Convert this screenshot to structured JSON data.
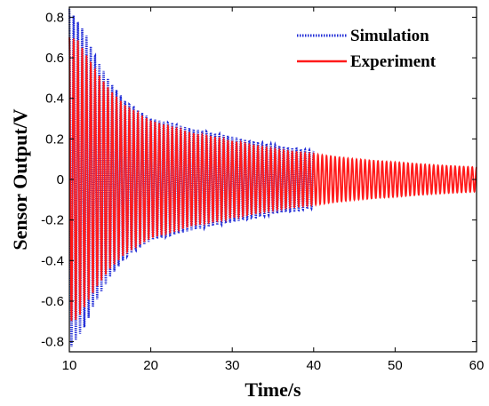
{
  "chart_data": {
    "type": "line",
    "title": "",
    "xlabel": "Time/s",
    "ylabel": "Sensor Output/V",
    "xlim": [
      10,
      60
    ],
    "ylim": [
      -0.85,
      0.85
    ],
    "xticks": [
      10,
      20,
      30,
      40,
      50,
      60
    ],
    "xtick_labels": [
      "10",
      "20",
      "30",
      "40",
      "50",
      "60"
    ],
    "yticks": [
      -0.8,
      -0.6,
      -0.4,
      -0.2,
      0,
      0.2,
      0.4,
      0.6,
      0.8
    ],
    "ytick_labels": [
      "-0.8",
      "-0.6",
      "-0.4",
      "-0.2",
      "0",
      "0.2",
      "0.4",
      "0.6",
      "0.8"
    ],
    "grid": false,
    "legend_position": "top-right",
    "series": [
      {
        "name": "Simulation",
        "color": "#1f2bd6",
        "line_style": "dotted",
        "time_range": [
          10,
          40
        ],
        "frequency_hz": 1.9,
        "envelope": {
          "t": [
            10,
            11,
            12,
            13,
            15,
            17,
            20,
            25,
            30,
            35,
            40
          ],
          "amplitude": [
            0.84,
            0.78,
            0.72,
            0.62,
            0.48,
            0.38,
            0.3,
            0.25,
            0.21,
            0.17,
            0.14
          ]
        }
      },
      {
        "name": "Experiment",
        "color": "#ff1a1a",
        "line_style": "solid",
        "time_range": [
          10,
          60
        ],
        "frequency_hz": 1.9,
        "envelope": {
          "t": [
            10,
            11,
            12,
            13,
            15,
            17,
            20,
            25,
            30,
            35,
            40,
            45,
            50,
            55,
            60
          ],
          "amplitude": [
            0.7,
            0.69,
            0.62,
            0.55,
            0.44,
            0.36,
            0.29,
            0.23,
            0.19,
            0.15,
            0.125,
            0.1,
            0.085,
            0.07,
            0.06
          ]
        }
      }
    ]
  }
}
